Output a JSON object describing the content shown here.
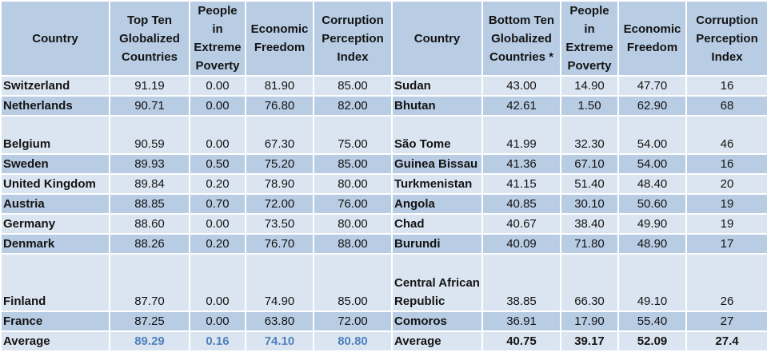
{
  "headers": [
    "Country",
    "Top Ten Globalized Countries",
    "People in Extreme Poverty",
    "Economic Freedom",
    "Corruption Perception Index",
    "Country",
    "Bottom Ten Globalized Countries *",
    "People in Extreme Poverty",
    "Economic Freedom",
    "Corruption Perception Index"
  ],
  "rows": [
    [
      "Switzerland",
      "91.19",
      "0.00",
      "81.90",
      "85.00",
      "Sudan",
      "43.00",
      "14.90",
      "47.70",
      "16"
    ],
    [
      "Netherlands",
      "90.71",
      "0.00",
      "76.80",
      "82.00",
      "Bhutan",
      "42.61",
      "1.50",
      "62.90",
      "68"
    ],
    [
      "Belgium",
      "90.59",
      "0.00",
      "67.30",
      "75.00",
      "São Tome",
      "41.99",
      "32.30",
      "54.00",
      "46"
    ],
    [
      "Sweden",
      "89.93",
      "0.50",
      "75.20",
      "85.00",
      "Guinea Bissau",
      "41.36",
      "67.10",
      "54.00",
      "16"
    ],
    [
      "United Kingdom",
      "89.84",
      "0.20",
      "78.90",
      "80.00",
      "Turkmenistan",
      "41.15",
      "51.40",
      "48.40",
      "20"
    ],
    [
      "Austria",
      "88.85",
      "0.70",
      "72.00",
      "76.00",
      "Angola",
      "40.85",
      "30.10",
      "50.60",
      "19"
    ],
    [
      "Germany",
      "88.60",
      "0.00",
      "73.50",
      "80.00",
      "Chad",
      "40.67",
      "38.40",
      "49.90",
      "19"
    ],
    [
      "Denmark",
      "88.26",
      "0.20",
      "76.70",
      "88.00",
      "Burundi",
      "40.09",
      "71.80",
      "48.90",
      "17"
    ],
    [
      "Finland",
      "87.70",
      "0.00",
      "74.90",
      "85.00",
      "Central African Republic",
      "38.85",
      "66.30",
      "49.10",
      "26"
    ],
    [
      "France",
      "87.25",
      "0.00",
      "63.80",
      "72.00",
      "Comoros",
      "36.91",
      "17.90",
      "55.40",
      "27"
    ]
  ],
  "average": [
    "Average",
    "89.29",
    "0.16",
    "74.10",
    "80.80",
    "Average",
    "40.75",
    "39.17",
    "52.09",
    "27.4"
  ],
  "colors": {
    "header": "#b8cce4",
    "row_light": "#dbe5f1",
    "row_dark": "#b8cce4",
    "accent": "#4f81bd"
  }
}
